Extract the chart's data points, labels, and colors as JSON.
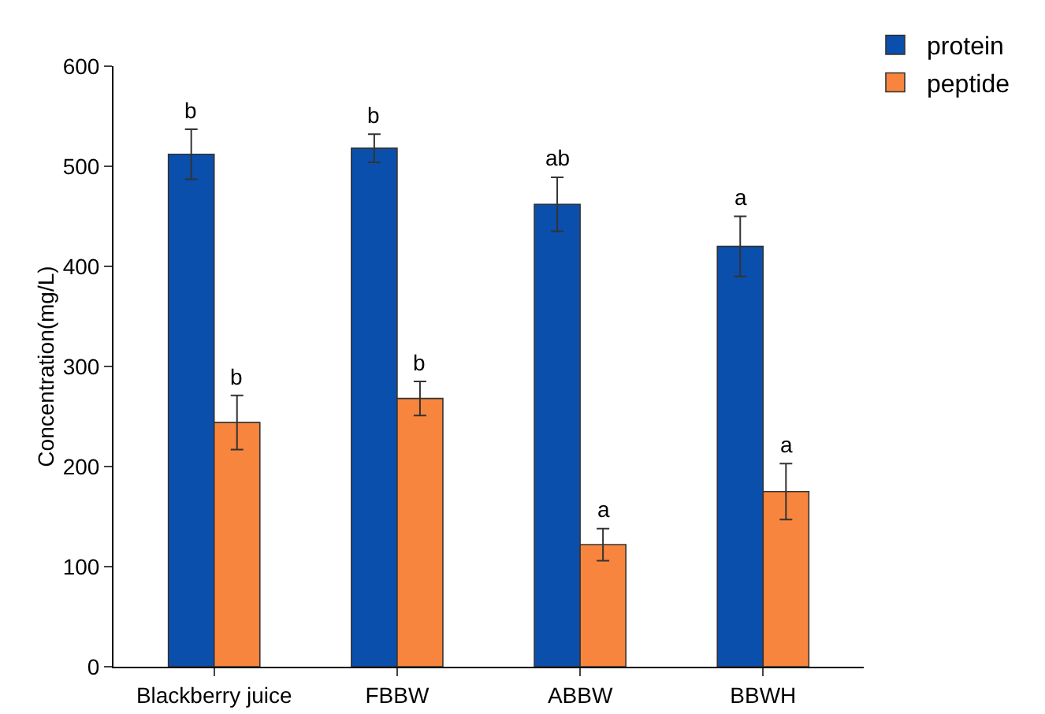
{
  "chart_data": {
    "type": "bar",
    "ylabel": "Concentration(mg/L)",
    "categories": [
      "Blackberry juice",
      "FBBW",
      "ABBW",
      "BBWH"
    ],
    "series": [
      {
        "name": "protein",
        "color": "#0b4fad",
        "values": [
          512,
          518,
          462,
          420
        ],
        "errors": [
          25,
          14,
          27,
          30
        ]
      },
      {
        "name": "peptide",
        "color": "#f8853d",
        "values": [
          244,
          268,
          122,
          175
        ],
        "errors": [
          27,
          17,
          16,
          28
        ]
      }
    ],
    "ylim": [
      0,
      600
    ],
    "yticks": [
      0,
      100,
      200,
      300,
      400,
      500,
      600
    ],
    "grid": false,
    "legend": "top right",
    "annotations": [
      {
        "text": "b",
        "x": "Blackberry juice",
        "y": 512
      },
      {
        "text": "b",
        "x": "Blackberry juice",
        "y": 244
      },
      {
        "text": "b",
        "x": "FBBW",
        "y": 518
      },
      {
        "text": "b",
        "x": "FBBW",
        "y": 268
      },
      {
        "text": "ab",
        "x": "ABBW",
        "y": 462
      },
      {
        "text": "a",
        "x": "ABBW",
        "y": 122
      },
      {
        "text": "a",
        "x": "BBWH",
        "y": 420
      },
      {
        "text": "a",
        "x": "BBWH",
        "y": 175
      }
    ]
  }
}
